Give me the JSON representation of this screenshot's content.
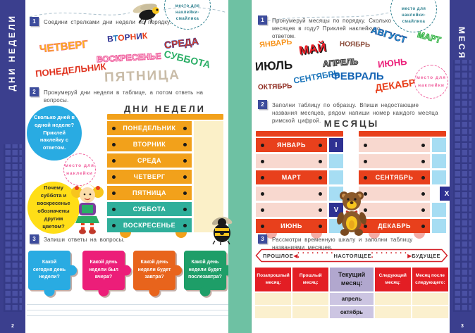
{
  "colors": {
    "sidebar": "#3B3F8E",
    "spine_green": "#6EC1A3",
    "task_square": "#3D4C9C",
    "drawer_orange": "#F2A11B",
    "drawer_teal": "#2FAF9B",
    "side_cream": "#FBF0C8",
    "drawer_red": "#E8401C",
    "drawer_pink": "#F8D8CF",
    "side_blue": "#A6DDF3",
    "numeral_navy": "#2E3192",
    "circle_blue": "#29ABE2",
    "circle_yellow": "#FFDE17",
    "sticker_pink": "#F0609E",
    "badge_teal": "#2B7F8E",
    "timeline_red": "#D42027",
    "table_header_red": "#E31E24",
    "lavender_header": "#B1A7CE",
    "lavender_cell": "#CCC5E2",
    "cream_cell": "#FBF0CE"
  },
  "illustrations": [
    "fly-icon",
    "bee-icon",
    "doll-icon",
    "teddy-bear-icon"
  ],
  "page_left": {
    "page_number": "2",
    "side_tab": "ДНИ НЕДЕЛИ",
    "sticker_badge": "место для наклейки-смайлика",
    "task1": {
      "num": "1",
      "text": "Соедини стрелками дни недели по порядку."
    },
    "scattered_days": [
      {
        "label": "ЧЕТВЕРГ",
        "color": "#FDB714"
      },
      {
        "label": "ВТОРНИК",
        "color": "#2E3192",
        "letter_colors": [
          "#2E3192",
          "#1B75BB",
          "#E8401C",
          "#2E3192",
          "#E8401C",
          "#2E3192",
          "#E8401C"
        ]
      },
      {
        "label": "СРЕДА",
        "color": "#E8401C"
      },
      {
        "label": "ВОСКРЕСЕНЬЕ",
        "color": "#F0609E"
      },
      {
        "label": "СУББОТА",
        "color": "#2BAE66"
      },
      {
        "label": "ПОНЕДЕЛЬНИК",
        "color": "#E0331F"
      },
      {
        "label": "ПЯТНИЦА",
        "color": "#C9BCA8"
      }
    ],
    "task2": {
      "num": "2",
      "text": "Пронумеруй дни недели в таблице, а потом ответь на вопросы."
    },
    "week_table": {
      "title": "ДНИ НЕДЕЛИ",
      "days": [
        "ПОНЕДЕЛЬНИК",
        "ВТОРНИК",
        "СРЕДА",
        "ЧЕТВЕРГ",
        "ПЯТНИЦА",
        "СУББОТА",
        "ВОСКРЕСЕНЬЕ"
      ]
    },
    "question_blue": "Сколько дней в одной неделе? Приклей наклейку с ответом.",
    "sticker_circle": "место для наклейки",
    "question_yellow": "Почему суббота и воскресенье обозначены другим цветом?",
    "task3": {
      "num": "3",
      "text": "Запиши ответы на вопросы."
    },
    "puzzles": [
      {
        "label": "Какой сегодня день недели?",
        "color": "#29ABE2"
      },
      {
        "label": "Какой день недели был вчера?",
        "color": "#EC1E79"
      },
      {
        "label": "Какой день недели будет завтра?",
        "color": "#E8641C"
      },
      {
        "label": "Какой день недели будет послезавтра?",
        "color": "#1E9E68"
      }
    ]
  },
  "page_right": {
    "page_number": "3",
    "side_tab": "МЕСЯЦЫ",
    "sticker_badge": "место для наклейки-смайлика",
    "task1": {
      "num": "1",
      "text": "Пронумеруй месяцы по порядку. Сколько месяцев в году? Приклей наклейку с ответом."
    },
    "scattered_months": [
      {
        "label": "ЯНВАРЬ",
        "color": "#F7941D"
      },
      {
        "label": "МАЙ",
        "color": "#ED1C24"
      },
      {
        "label": "НОЯБРЬ",
        "color": "#8A4A38"
      },
      {
        "label": "АВГУСТ",
        "color": "#29ABE2"
      },
      {
        "label": "МАРТ",
        "color": "#39B54A"
      },
      {
        "label": "ИЮЛЬ",
        "color": "#1A1A1A"
      },
      {
        "label": "АПРЕЛЬ",
        "color": "#3A3A3A"
      },
      {
        "label": "ИЮНЬ",
        "color": "#EC1E79"
      },
      {
        "label": "СЕНТЯБРЬ",
        "color": "#1B75BB"
      },
      {
        "label": "ФЕВРАЛЬ",
        "color": "#1464B4"
      },
      {
        "label": "ОКТЯБРЬ",
        "color": "#8E2A1E"
      },
      {
        "label": "ДЕКАБРЬ",
        "color": "#E8401C"
      }
    ],
    "sticker_circle": "место для наклейки",
    "task2": {
      "num": "2",
      "text": "Заполни таблицу по образцу. Впиши недостающие названия месяцев, рядом напиши номер каждого месяца римской цифрой."
    },
    "months_table": {
      "title": "МЕСЯЦЫ",
      "left_rows": [
        {
          "label": "ЯНВАРЬ",
          "numeral": "I"
        },
        {
          "label": "",
          "numeral": ""
        },
        {
          "label": "МАРТ",
          "numeral": ""
        },
        {
          "label": "",
          "numeral": ""
        },
        {
          "label": "",
          "numeral": "V"
        },
        {
          "label": "ИЮНЬ",
          "numeral": ""
        }
      ],
      "right_rows": [
        {
          "label": "",
          "numeral": ""
        },
        {
          "label": "",
          "numeral": ""
        },
        {
          "label": "СЕНТЯБРЬ",
          "numeral": ""
        },
        {
          "label": "",
          "numeral": "X"
        },
        {
          "label": "",
          "numeral": ""
        },
        {
          "label": "ДЕКАБРЬ",
          "numeral": ""
        }
      ]
    },
    "task3": {
      "num": "3",
      "text": "Рассмотри временную шкалу и заполни таблицу названиями месяцев."
    },
    "timeline": {
      "past": "ПРОШЛОЕ",
      "present": "НАСТОЯЩЕЕ",
      "future": "БУДУЩЕЕ",
      "arrow_left": "◀",
      "arrow_right": "▶",
      "dots": "• • • • • • • • •"
    },
    "answer_table": {
      "headers": [
        "Позапрошлый месяц:",
        "Прошлый месяц:",
        "Текущий месяц:",
        "Следующий месяц:",
        "Месяц после следующего:"
      ],
      "rows": [
        [
          "",
          "",
          "апрель",
          "",
          ""
        ],
        [
          "",
          "",
          "октябрь",
          "",
          ""
        ]
      ]
    }
  }
}
